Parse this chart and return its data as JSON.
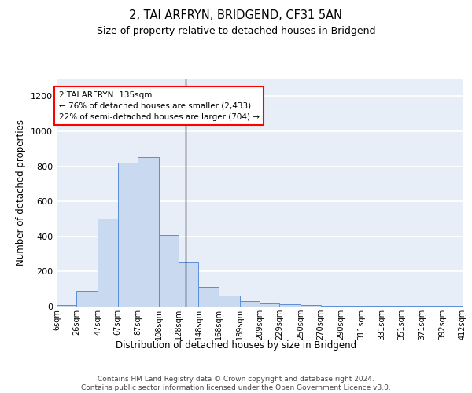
{
  "title1": "2, TAI ARFRYN, BRIDGEND, CF31 5AN",
  "title2": "Size of property relative to detached houses in Bridgend",
  "xlabel": "Distribution of detached houses by size in Bridgend",
  "ylabel": "Number of detached properties",
  "bin_edges": [
    6,
    26,
    47,
    67,
    87,
    108,
    128,
    148,
    168,
    189,
    209,
    229,
    250,
    270,
    290,
    311,
    331,
    351,
    371,
    392,
    412
  ],
  "bar_heights": [
    10,
    90,
    500,
    820,
    850,
    410,
    255,
    110,
    65,
    30,
    20,
    15,
    10,
    5,
    5,
    5,
    5,
    5,
    5,
    5
  ],
  "tick_labels": [
    "6sqm",
    "26sqm",
    "47sqm",
    "67sqm",
    "87sqm",
    "108sqm",
    "128sqm",
    "148sqm",
    "168sqm",
    "189sqm",
    "209sqm",
    "229sqm",
    "250sqm",
    "270sqm",
    "290sqm",
    "311sqm",
    "331sqm",
    "351sqm",
    "371sqm",
    "392sqm",
    "412sqm"
  ],
  "bar_color": "#c9d9f0",
  "bar_edge_color": "#5b8dd9",
  "bg_color": "#e8eef8",
  "grid_color": "#ffffff",
  "vline_x": 135,
  "annotation_text": "2 TAI ARFRYN: 135sqm\n← 76% of detached houses are smaller (2,433)\n22% of semi-detached houses are larger (704) →",
  "footer": "Contains HM Land Registry data © Crown copyright and database right 2024.\nContains public sector information licensed under the Open Government Licence v3.0.",
  "ylim": [
    0,
    1300
  ],
  "yticks": [
    0,
    200,
    400,
    600,
    800,
    1000,
    1200
  ]
}
